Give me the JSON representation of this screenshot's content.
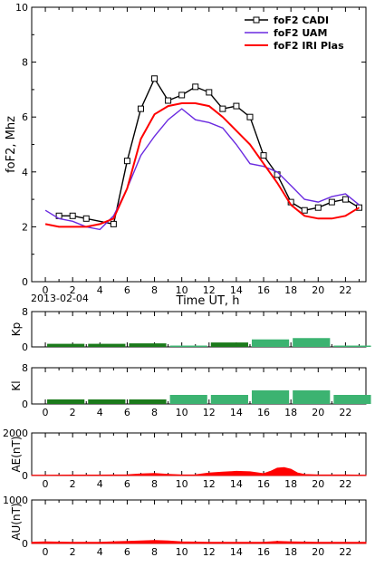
{
  "date_label": "2013-02-04",
  "colors": {
    "cadi": "#000000",
    "uam": "#6a2ae0",
    "iri": "#ff0000",
    "kp_dark": "#1b7a1b",
    "kp_light": "#3cb371",
    "ae": "#ff0000"
  },
  "chart_data": [
    {
      "type": "line",
      "ylabel": "foF2, Mhz",
      "xlabel": "Time UT, h",
      "xlim": [
        -1,
        23.5
      ],
      "ylim": [
        0,
        10
      ],
      "x_ticks": [
        0,
        2,
        4,
        6,
        8,
        10,
        12,
        14,
        16,
        18,
        20,
        22
      ],
      "y_ticks": [
        0,
        2,
        4,
        6,
        8,
        10
      ],
      "legend_position": "top-right",
      "series": [
        {
          "name": "foF2 CADI",
          "color": "#000000",
          "marker": "square",
          "x": [
            1,
            2,
            3,
            5,
            6,
            7,
            8,
            9,
            10,
            11,
            12,
            13,
            14,
            15,
            16,
            17,
            18,
            19,
            20,
            21,
            22,
            23
          ],
          "y": [
            2.4,
            2.4,
            2.3,
            2.1,
            4.4,
            6.3,
            7.4,
            6.6,
            6.8,
            7.1,
            6.9,
            6.3,
            6.4,
            6.0,
            4.6,
            3.9,
            2.9,
            2.6,
            2.7,
            2.9,
            3.0,
            2.7
          ]
        },
        {
          "name": "foF2 UAM",
          "color": "#6a2ae0",
          "marker": "none",
          "x": [
            0,
            1,
            2,
            3,
            4,
            5,
            6,
            7,
            8,
            9,
            10,
            11,
            12,
            13,
            14,
            15,
            16,
            17,
            18,
            19,
            20,
            21,
            22,
            23
          ],
          "y": [
            2.6,
            2.3,
            2.2,
            2.0,
            1.9,
            2.4,
            3.4,
            4.6,
            5.3,
            5.9,
            6.3,
            5.9,
            5.8,
            5.6,
            5.0,
            4.3,
            4.2,
            4.0,
            3.5,
            3.0,
            2.9,
            3.1,
            3.2,
            2.8
          ]
        },
        {
          "name": "foF2 IRI Plas",
          "color": "#ff0000",
          "marker": "none",
          "x": [
            0,
            1,
            2,
            3,
            4,
            5,
            6,
            7,
            8,
            9,
            10,
            11,
            12,
            13,
            14,
            15,
            16,
            17,
            18,
            19,
            20,
            21,
            22,
            23
          ],
          "y": [
            2.1,
            2.0,
            2.0,
            2.0,
            2.1,
            2.3,
            3.4,
            5.2,
            6.1,
            6.4,
            6.5,
            6.5,
            6.4,
            6.0,
            5.5,
            5.0,
            4.3,
            3.6,
            2.8,
            2.4,
            2.3,
            2.3,
            2.4,
            2.7
          ]
        }
      ]
    },
    {
      "type": "bar",
      "ylabel": "Kp",
      "xlim": [
        -1,
        23.5
      ],
      "ylim": [
        0,
        8
      ],
      "y_ticks": [
        0,
        8
      ],
      "bar_start": [
        0,
        3,
        6,
        9,
        12,
        15,
        18,
        21
      ],
      "bar_width": 3,
      "values": [
        0.7,
        0.7,
        0.8,
        0.3,
        1.0,
        1.7,
        2.0,
        0.3
      ],
      "bar_colors": [
        "#1b7a1b",
        "#1b7a1b",
        "#1b7a1b",
        "#3cb371",
        "#1b7a1b",
        "#3cb371",
        "#3cb371",
        "#3cb371"
      ]
    },
    {
      "type": "bar",
      "ylabel": "Kl",
      "xlim": [
        -1,
        23.5
      ],
      "ylim": [
        0,
        8
      ],
      "y_ticks": [
        0,
        8
      ],
      "x_ticks": [
        0,
        2,
        4,
        6,
        8,
        10,
        12,
        14,
        16,
        18,
        20,
        22
      ],
      "bar_start": [
        0,
        3,
        6,
        9,
        12,
        15,
        18,
        21
      ],
      "bar_width": 3,
      "values": [
        1.0,
        1.0,
        1.0,
        2.0,
        2.0,
        3.0,
        3.0,
        2.0
      ],
      "bar_colors": [
        "#1b7a1b",
        "#1b7a1b",
        "#1b7a1b",
        "#3cb371",
        "#3cb371",
        "#3cb371",
        "#3cb371",
        "#3cb371"
      ]
    },
    {
      "type": "area",
      "ylabel": "AE(nT)",
      "xlim": [
        -1,
        23.5
      ],
      "ylim": [
        0,
        2000
      ],
      "y_ticks": [
        0,
        2000
      ],
      "x_ticks": [
        0,
        2,
        4,
        6,
        8,
        10,
        12,
        14,
        16,
        18,
        20,
        22
      ],
      "color": "#ff0000",
      "x": [
        -1,
        0,
        2,
        4,
        6,
        7,
        8,
        9,
        10,
        11,
        12,
        13,
        14,
        15,
        16,
        16.5,
        17,
        17.5,
        18,
        18.5,
        19,
        20,
        22,
        23.5
      ],
      "y": [
        20,
        20,
        25,
        25,
        40,
        80,
        100,
        60,
        30,
        40,
        120,
        160,
        200,
        180,
        90,
        200,
        350,
        380,
        300,
        120,
        50,
        30,
        30,
        20
      ]
    },
    {
      "type": "area",
      "ylabel": "AU(nT)",
      "xlim": [
        -1,
        23.5
      ],
      "ylim": [
        0,
        1000
      ],
      "y_ticks": [
        0,
        1000
      ],
      "x_ticks": [
        0,
        2,
        4,
        6,
        8,
        10,
        12,
        14,
        16,
        18,
        20,
        22
      ],
      "color": "#ff0000",
      "x": [
        -1,
        0,
        2,
        4,
        6,
        7,
        8,
        9,
        10,
        12,
        14,
        16,
        17,
        18,
        20,
        22,
        23.5
      ],
      "y": [
        30,
        40,
        30,
        30,
        50,
        60,
        70,
        60,
        40,
        30,
        30,
        30,
        50,
        40,
        30,
        30,
        30
      ]
    }
  ]
}
